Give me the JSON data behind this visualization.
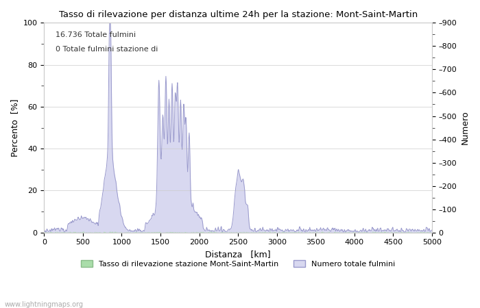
{
  "title": "Tasso di rilevazione per distanza ultime 24h per la stazione: Mont-Saint-Martin",
  "xlabel": "Distanza   [km]",
  "ylabel_left": "Percento  [%]",
  "ylabel_right": "Numero",
  "xlim": [
    0,
    5000
  ],
  "ylim_left": [
    0,
    100
  ],
  "ylim_right": [
    0,
    900
  ],
  "xticks": [
    0,
    500,
    1000,
    1500,
    2000,
    2500,
    3000,
    3500,
    4000,
    4500,
    5000
  ],
  "yticks_left": [
    0,
    20,
    40,
    60,
    80,
    100
  ],
  "yticks_right": [
    0,
    100,
    200,
    300,
    400,
    500,
    600,
    700,
    800,
    900
  ],
  "annotation1": "16.736 Totale fulmini",
  "annotation2": "0 Totale fulmini stazione di",
  "legend_label1": "Tasso di rilevazione stazione Mont-Saint-Martin",
  "legend_label2": "Numero totale fulmini",
  "watermark": "www.lightningmaps.org",
  "line_color": "#9999cc",
  "fill_color_blue": "#d8d8f0",
  "fill_color_green": "#aaddaa",
  "background_color": "#ffffff"
}
